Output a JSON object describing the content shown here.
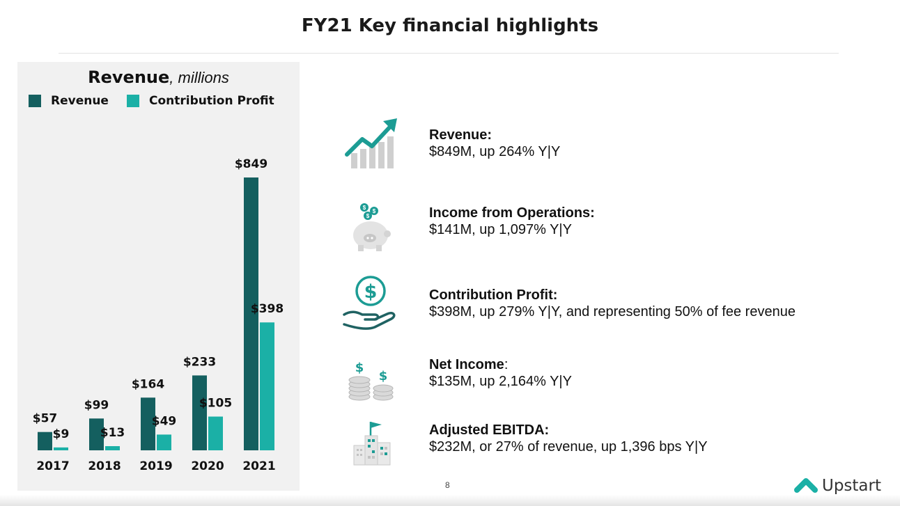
{
  "page": {
    "title": "FY21 Key financial highlights",
    "page_number": "8",
    "brand": "Upstart"
  },
  "colors": {
    "revenue": "#145f5f",
    "contribution": "#1bb0a6",
    "panel_bg": "#f1f1f1",
    "icon_teal": "#1c9c94",
    "icon_gray": "#cfcfcf"
  },
  "chart_data": {
    "type": "bar",
    "title": "Revenue",
    "title_unit": ", millions",
    "categories": [
      "2017",
      "2018",
      "2019",
      "2020",
      "2021"
    ],
    "series": [
      {
        "name": "Revenue",
        "values": [
          57,
          99,
          164,
          233,
          849
        ],
        "labels": [
          "$57",
          "$99",
          "$164",
          "$233",
          "$849"
        ]
      },
      {
        "name": "Contribution Profit",
        "values": [
          9,
          13,
          49,
          105,
          398
        ],
        "labels": [
          "$9",
          "$13",
          "$49",
          "$105",
          "$398"
        ]
      }
    ],
    "ylim": [
      0,
      849
    ],
    "grid": false,
    "legend": "top-left",
    "xlabel": "",
    "ylabel": ""
  },
  "metrics": [
    {
      "icon": "growth-chart-icon",
      "label": "Revenue:",
      "value": "$849M, up 264% Y|Y"
    },
    {
      "icon": "piggy-bank-icon",
      "label": "Income from Operations:",
      "value": "$141M, up 1,097% Y|Y"
    },
    {
      "icon": "hand-dollar-icon",
      "label": "Contribution Profit:",
      "value": "$398M, up 279% Y|Y, and representing 50% of fee revenue"
    },
    {
      "icon": "coin-stacks-icon",
      "label": "Net Income",
      "label_suffix": ":",
      "value": "$135M, up 2,164% Y|Y"
    },
    {
      "icon": "buildings-flag-icon",
      "label": "Adjusted EBITDA:",
      "value": "$232M, or 27% of revenue, up 1,396 bps Y|Y"
    }
  ]
}
